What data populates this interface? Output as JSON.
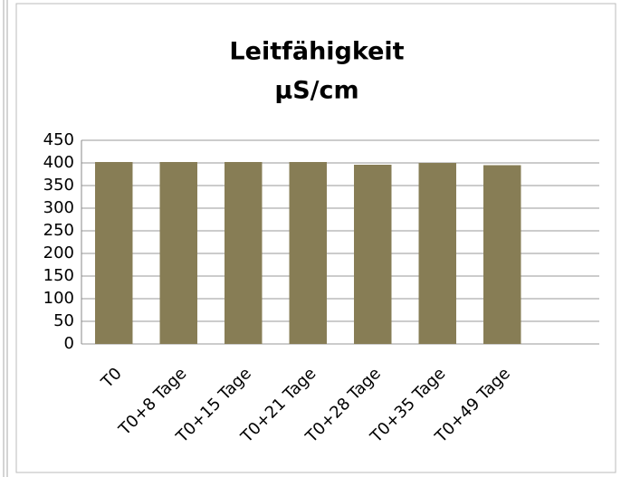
{
  "chart_data": {
    "type": "bar",
    "title": [
      "Leitfähigkeit",
      "µS/cm"
    ],
    "categories": [
      "T0",
      "T0+8 Tage",
      "T0+15 Tage",
      "T0+21 Tage",
      "T0+28 Tage",
      "T0+35 Tage",
      "T0+49 Tage",
      null
    ],
    "values": [
      402,
      402,
      402,
      402,
      396,
      400,
      395,
      null
    ],
    "color": "#877d55",
    "ylim": [
      0,
      450
    ],
    "yticks": [
      0,
      50,
      100,
      150,
      200,
      250,
      300,
      350,
      400,
      450
    ],
    "grid": true
  }
}
